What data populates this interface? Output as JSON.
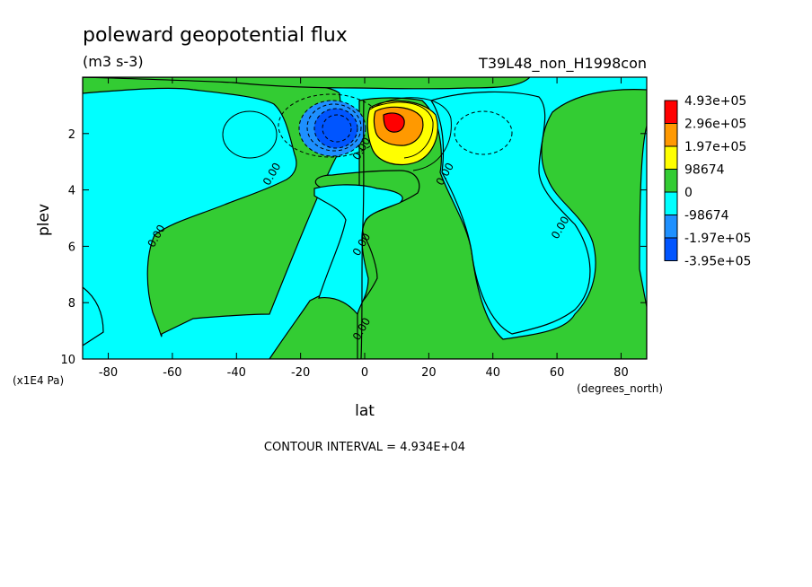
{
  "title": "poleward geopotential flux",
  "units": "(m3 s-3)",
  "run_label": "T39L48_non_H1998con",
  "contour_interval_text": "CONTOUR INTERVAL = 4.934E+04",
  "colors": {
    "red": "#ff0000",
    "orange": "#ff9900",
    "yellow": "#ffff00",
    "green": "#33cc33",
    "cyan": "#00ffff",
    "mid_blue": "#1e90ff",
    "deep_blue": "#0055ff",
    "line": "#000000"
  },
  "chart_data": {
    "type": "contour",
    "title": "poleward geopotential flux",
    "subtitle": "(m3 s-3)",
    "xlabel": "lat",
    "xunit": "(degrees_north)",
    "ylabel": "plev",
    "yunit": "(x1E4 Pa)",
    "xlim": [
      -88,
      88
    ],
    "ylim": [
      10,
      0
    ],
    "xticks": [
      -80,
      -60,
      -40,
      -20,
      0,
      20,
      40,
      60,
      80
    ],
    "yticks": [
      2,
      4,
      6,
      8,
      10
    ],
    "contour_interval": 49340,
    "legend": {
      "position": "right",
      "levels": [
        "4.93e+05",
        "2.96e+05",
        "1.97e+05",
        "98674",
        "0",
        "-98674",
        "-1.97e+05",
        "-3.95e+05"
      ],
      "colors": [
        "#ff0000",
        "#ff9900",
        "#ffff00",
        "#33cc33",
        "#00ffff",
        "#1e90ff",
        "#0055ff"
      ]
    },
    "zero_contour_labels": [
      {
        "label": "0.00",
        "lat": -64,
        "plev": 5.7
      },
      {
        "label": "0.00",
        "lat": -28,
        "plev": 3.5
      },
      {
        "label": "0.00",
        "lat": 0,
        "plev": 2.6
      },
      {
        "label": "0.00",
        "lat": 0,
        "plev": 6.0
      },
      {
        "label": "0.00",
        "lat": 0,
        "plev": 9.0
      },
      {
        "label": "0.00",
        "lat": 26,
        "plev": 3.5
      },
      {
        "label": "0.00",
        "lat": 62,
        "plev": 5.4
      }
    ],
    "extrema": [
      {
        "kind": "max",
        "lat": 8,
        "plev": 1.8,
        "approx_value": 490000
      },
      {
        "kind": "min",
        "lat": -10,
        "plev": 1.8,
        "approx_value": -395000
      }
    ]
  }
}
